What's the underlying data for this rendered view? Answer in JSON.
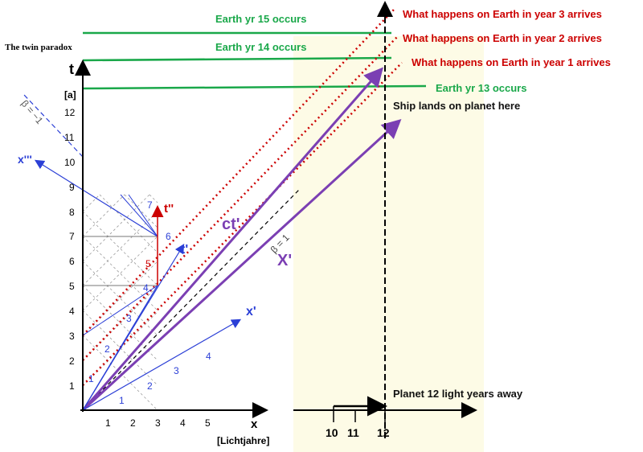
{
  "title": "The twin paradox",
  "axes": {
    "t_label": "t",
    "t_unit": "[a]",
    "x_label": "x",
    "x_unit": "[Lichtjahre]",
    "t_ticks": [
      "1",
      "2",
      "3",
      "4",
      "5",
      "6",
      "7",
      "8",
      "9",
      "10",
      "11",
      "12"
    ],
    "x_ticks": [
      "1",
      "2",
      "3",
      "4",
      "5"
    ],
    "x_far_ticks": [
      "10",
      "11",
      "12"
    ]
  },
  "diagram_labels": {
    "beta_neg": "β = −1",
    "beta_pos": "β = 1",
    "x_prime": "x'",
    "t_prime": "t'",
    "t_double_prime": "t''",
    "x_triple_prime": "x'''",
    "ct_prime": "ct'",
    "X_prime": "X'",
    "light_clock_nums_a": [
      "1",
      "2",
      "3",
      "4"
    ],
    "light_clock_nums_b": [
      "1",
      "2",
      "3",
      "4"
    ],
    "light_clock_nums_c": [
      "5",
      "6",
      "7"
    ]
  },
  "annotations": {
    "earth_yr_15": "Earth yr 15 occurs",
    "earth_yr_14": "Earth yr 14 occurs",
    "earth_yr_13": "Earth yr 13 occurs",
    "arrive_3": "What happens on Earth in year 3 arrives",
    "arrive_2": "What happens on Earth in year 2 arrives",
    "arrive_1": "What happens on Earth in year 1 arrives",
    "ship_lands": "Ship lands on planet here",
    "planet": "Planet 12 light years away"
  },
  "colors": {
    "green": "#1aa84a",
    "red": "#cc0000",
    "purple": "#7b3fb3",
    "blue": "#2b3fd6",
    "shade": "#fdfbe6"
  }
}
